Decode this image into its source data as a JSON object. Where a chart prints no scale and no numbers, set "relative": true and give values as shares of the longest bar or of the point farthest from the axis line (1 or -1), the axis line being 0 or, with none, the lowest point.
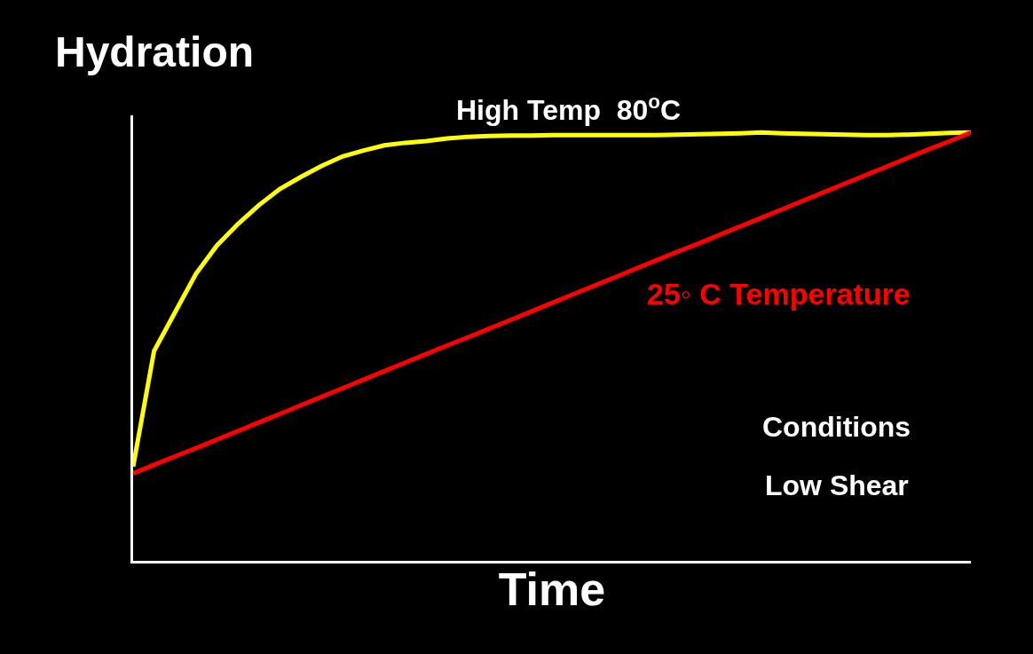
{
  "chart_data": {
    "type": "line",
    "relative": true,
    "ylabel": "Hydration",
    "xlabel": "Time",
    "categories": [
      null,
      null,
      null,
      null,
      null,
      null,
      null,
      null,
      null,
      null,
      null,
      null,
      null,
      null,
      null,
      null,
      null,
      null,
      null,
      null,
      null,
      null,
      null,
      null,
      null,
      null,
      null,
      null,
      null,
      null,
      null,
      null,
      null,
      null,
      null,
      null,
      null,
      null,
      null,
      null,
      null
    ],
    "series": [
      {
        "name": "High Temp  80$^{o}$C",
        "color": "#ffff00",
        "values": [
          0.22,
          0.49,
          0.58,
          0.67,
          0.736,
          0.786,
          0.83,
          0.868,
          0.896,
          0.922,
          0.944,
          0.958,
          0.97,
          0.976,
          0.98,
          0.986,
          0.99,
          0.992,
          0.993,
          0.993,
          0.994,
          0.994,
          0.994,
          0.994,
          0.994,
          0.994,
          0.995,
          0.996,
          0.997,
          0.998,
          1.0,
          0.998,
          0.997,
          0.996,
          0.995,
          0.994,
          0.994,
          0.995,
          0.997,
          0.999,
          1.0
        ]
      },
      {
        "name": "25◦ C Temperature",
        "color": "#ff0000",
        "values": [
          0.204,
          0.224,
          0.244,
          0.263,
          0.283,
          0.303,
          0.323,
          0.343,
          0.363,
          0.383,
          0.403,
          0.423,
          0.443,
          0.463,
          0.483,
          0.503,
          0.522,
          0.542,
          0.562,
          0.582,
          0.602,
          0.622,
          0.642,
          0.662,
          0.682,
          0.702,
          0.722,
          0.741,
          0.761,
          0.781,
          0.801,
          0.821,
          0.841,
          0.861,
          0.881,
          0.901,
          0.921,
          0.941,
          0.961,
          0.98,
          1.0
        ]
      }
    ],
    "annotations": [
      "Conditions",
      "Low Shear"
    ],
    "legend": false,
    "grid": false,
    "marker": "none",
    "line_style": "solid"
  }
}
